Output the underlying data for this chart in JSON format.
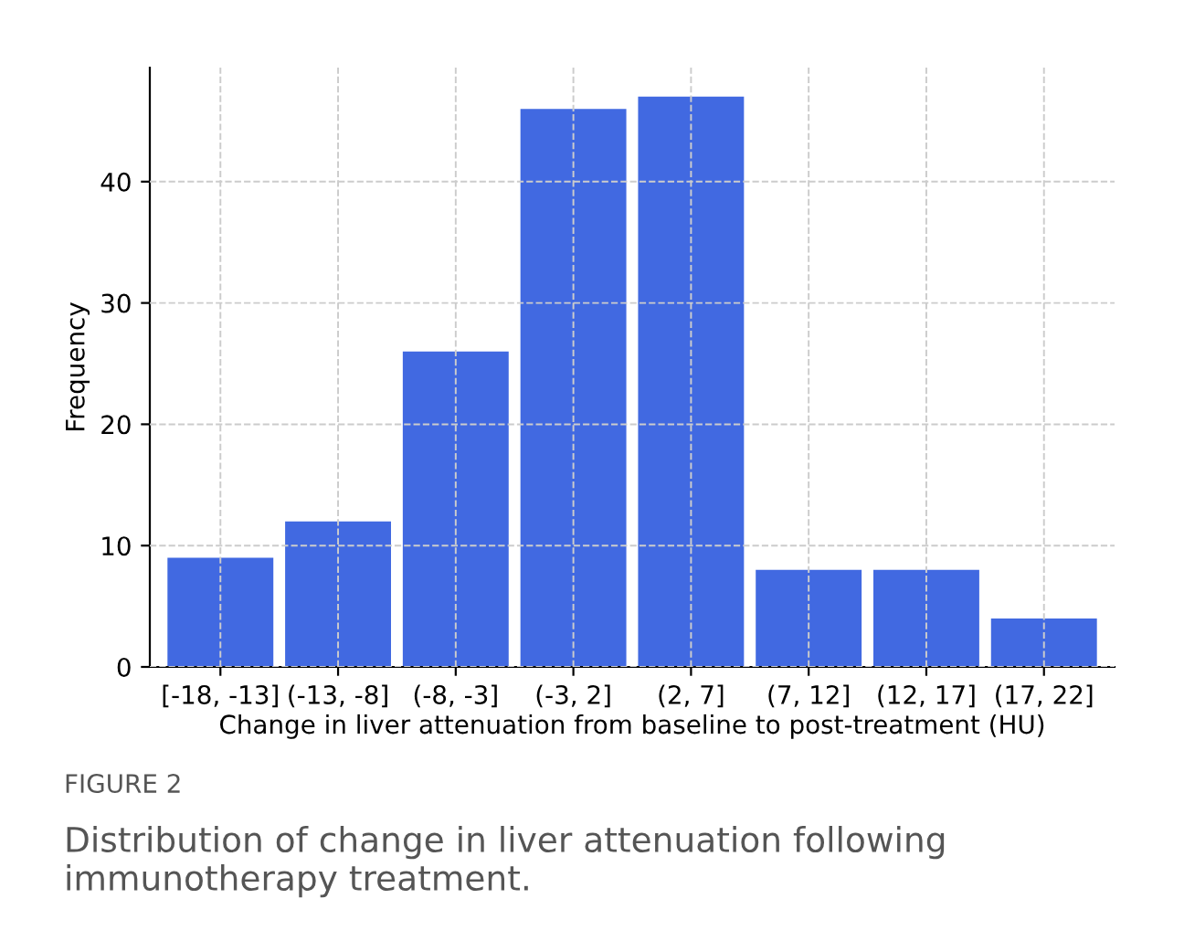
{
  "chart_data": {
    "type": "bar",
    "categories": [
      "[-18, -13]",
      "(-13, -8]",
      "(-8, -3]",
      "(-3, 2]",
      "(2, 7]",
      "(7, 12]",
      "(12, 17]",
      "(17, 22]"
    ],
    "values": [
      9,
      12,
      26,
      46,
      47,
      8,
      8,
      4
    ],
    "color": "#4169e1",
    "xlabel": "Change in liver attenuation from baseline to post-treatment (HU)",
    "ylabel": "Frequency",
    "ylim": [
      0,
      49.4
    ],
    "yticks": [
      0,
      10,
      20,
      30,
      40
    ],
    "grid": true,
    "annotations": [
      "FIGURE 2",
      "Distribution of change in liver attenuation following immunotherapy treatment."
    ]
  }
}
